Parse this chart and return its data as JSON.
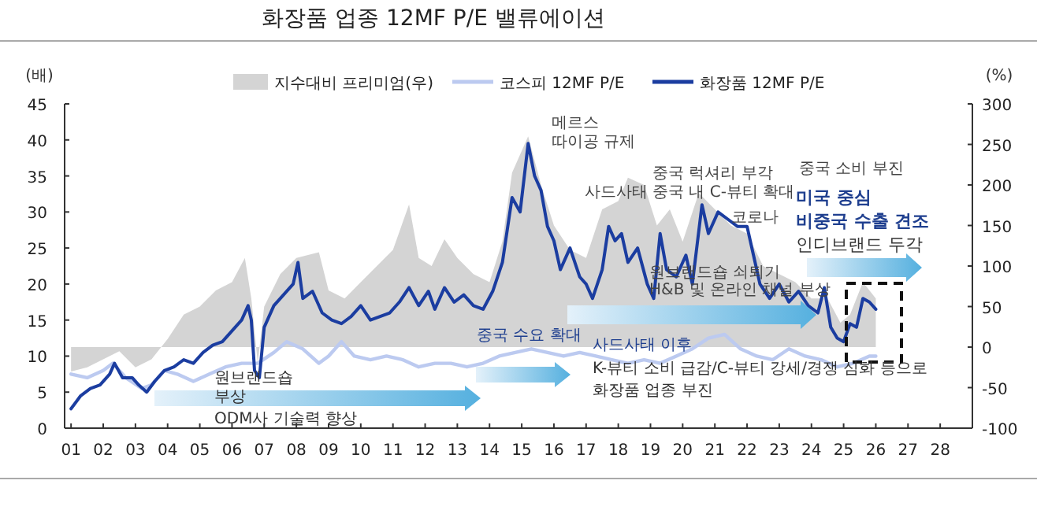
{
  "chart_data": {
    "type": "line",
    "title": "화장품 업종 12MF P/E 밸류에이션",
    "ylabel": "(배)",
    "y2label": "(%)",
    "legend": "top",
    "xlim": [
      2000.8,
      2029
    ],
    "xticks": [
      {
        "value": 2001,
        "label": "01"
      },
      {
        "value": 2002,
        "label": "02"
      },
      {
        "value": 2003,
        "label": "03"
      },
      {
        "value": 2004,
        "label": "04"
      },
      {
        "value": 2005,
        "label": "05"
      },
      {
        "value": 2006,
        "label": "06"
      },
      {
        "value": 2007,
        "label": "07"
      },
      {
        "value": 2008,
        "label": "08"
      },
      {
        "value": 2009,
        "label": "09"
      },
      {
        "value": 2010,
        "label": "10"
      },
      {
        "value": 2011,
        "label": "11"
      },
      {
        "value": 2012,
        "label": "12"
      },
      {
        "value": 2013,
        "label": "13"
      },
      {
        "value": 2014,
        "label": "14"
      },
      {
        "value": 2015,
        "label": "15"
      },
      {
        "value": 2016,
        "label": "16"
      },
      {
        "value": 2017,
        "label": "17"
      },
      {
        "value": 2018,
        "label": "18"
      },
      {
        "value": 2019,
        "label": "19"
      },
      {
        "value": 2020,
        "label": "20"
      },
      {
        "value": 2021,
        "label": "21"
      },
      {
        "value": 2022,
        "label": "22"
      },
      {
        "value": 2023,
        "label": "23"
      },
      {
        "value": 2024,
        "label": "24"
      },
      {
        "value": 2025,
        "label": "25"
      },
      {
        "value": 2026,
        "label": "26"
      },
      {
        "value": 2027,
        "label": "27"
      },
      {
        "value": 2028,
        "label": "28"
      }
    ],
    "ylim": [
      0,
      45
    ],
    "yticks": [
      0,
      5,
      10,
      15,
      20,
      25,
      30,
      35,
      40,
      45
    ],
    "y2lim": [
      -100,
      300
    ],
    "y2ticks": [
      -100,
      -50,
      0,
      50,
      100,
      150,
      200,
      250,
      300
    ],
    "series": [
      {
        "name": "지수대비 프리미엄(우)",
        "type": "area",
        "axis": "y2",
        "color": "#d4d4d4",
        "x": [
          2001.0,
          2001.5,
          2002.0,
          2002.5,
          2003.0,
          2003.5,
          2004.0,
          2004.5,
          2005.0,
          2005.5,
          2006.0,
          2006.4,
          2006.6,
          2006.8,
          2007.0,
          2007.5,
          2008.0,
          2008.7,
          2009.0,
          2009.5,
          2010.0,
          2010.5,
          2011.0,
          2011.5,
          2011.8,
          2012.2,
          2012.6,
          2013.0,
          2013.5,
          2014.0,
          2014.4,
          2014.7,
          2015.2,
          2015.6,
          2016.0,
          2016.5,
          2017.0,
          2017.5,
          2018.0,
          2018.3,
          2018.8,
          2019.2,
          2019.6,
          2020.0,
          2020.5,
          2021.0,
          2021.5,
          2022.0,
          2022.5,
          2023.0,
          2023.5,
          2024.0,
          2024.5,
          2024.9,
          2025.2,
          2025.6,
          2026.0
        ],
        "values": [
          -30,
          -25,
          -15,
          -5,
          -25,
          -15,
          10,
          40,
          50,
          70,
          80,
          110,
          60,
          -20,
          50,
          90,
          110,
          117,
          70,
          60,
          80,
          100,
          120,
          176,
          110,
          100,
          133,
          110,
          90,
          80,
          130,
          215,
          260,
          200,
          150,
          120,
          110,
          170,
          180,
          209,
          200,
          150,
          170,
          130,
          190,
          170,
          150,
          140,
          100,
          90,
          80,
          60,
          60,
          30,
          40,
          80,
          60
        ]
      },
      {
        "name": "코스피 12MF P/E",
        "color": "#bccaf0",
        "x": [
          2001.0,
          2001.5,
          2002.0,
          2002.3,
          2002.7,
          2003.2,
          2003.5,
          2003.9,
          2004.3,
          2004.8,
          2005.3,
          2005.8,
          2006.3,
          2006.8,
          2007.3,
          2007.7,
          2008.2,
          2008.7,
          2009.0,
          2009.4,
          2009.8,
          2010.3,
          2010.8,
          2011.3,
          2011.8,
          2012.3,
          2012.8,
          2013.3,
          2013.8,
          2014.3,
          2014.8,
          2015.3,
          2015.8,
          2016.3,
          2016.8,
          2017.3,
          2017.8,
          2018.3,
          2018.8,
          2019.3,
          2019.8,
          2020.3,
          2020.8,
          2021.3,
          2021.8,
          2022.3,
          2022.8,
          2023.3,
          2023.8,
          2024.3,
          2024.8,
          2025.3,
          2025.8,
          2026.0
        ],
        "values": [
          7.5,
          7,
          8,
          9,
          7,
          5.5,
          6,
          8,
          7.5,
          6.5,
          7.5,
          8.5,
          9,
          9,
          10.5,
          12,
          11,
          9,
          10,
          12,
          10,
          9.5,
          10,
          9.5,
          8.5,
          9,
          9,
          8.5,
          9,
          10,
          10.5,
          11,
          10.5,
          10,
          10.5,
          10,
          9.5,
          9,
          9.5,
          9,
          10,
          11,
          12.5,
          13,
          11,
          10,
          9.5,
          11,
          10,
          9.5,
          8.5,
          9,
          10,
          10
        ]
      },
      {
        "name": "화장품 12MF P/E",
        "color": "#1b3da0",
        "x": [
          2001.0,
          2001.3,
          2001.6,
          2001.9,
          2002.2,
          2002.35,
          2002.6,
          2002.9,
          2003.1,
          2003.35,
          2003.6,
          2003.9,
          2004.2,
          2004.5,
          2004.8,
          2005.1,
          2005.4,
          2005.7,
          2006.0,
          2006.3,
          2006.5,
          2006.6,
          2006.7,
          2006.85,
          2007.0,
          2007.3,
          2007.6,
          2007.9,
          2008.05,
          2008.2,
          2008.5,
          2008.8,
          2009.1,
          2009.4,
          2009.7,
          2010.0,
          2010.3,
          2010.6,
          2010.9,
          2011.2,
          2011.5,
          2011.8,
          2012.1,
          2012.3,
          2012.6,
          2012.9,
          2013.2,
          2013.5,
          2013.8,
          2014.1,
          2014.4,
          2014.7,
          2014.95,
          2015.2,
          2015.4,
          2015.6,
          2015.8,
          2016.0,
          2016.2,
          2016.5,
          2016.8,
          2017.0,
          2017.2,
          2017.5,
          2017.7,
          2017.9,
          2018.1,
          2018.3,
          2018.6,
          2018.9,
          2019.1,
          2019.3,
          2019.5,
          2019.8,
          2020.1,
          2020.3,
          2020.6,
          2020.8,
          2021.1,
          2021.4,
          2021.7,
          2022.0,
          2022.2,
          2022.4,
          2022.7,
          2023.0,
          2023.3,
          2023.6,
          2023.9,
          2024.2,
          2024.4,
          2024.6,
          2024.8,
          2025.0,
          2025.2,
          2025.4,
          2025.6,
          2025.8,
          2026.0
        ],
        "values": [
          2.7,
          4.5,
          5.5,
          6,
          7.5,
          9,
          7,
          7,
          6,
          5,
          6.5,
          8,
          8.5,
          9.5,
          9,
          10.5,
          11.5,
          12,
          13.5,
          15,
          17,
          15,
          8,
          7,
          14,
          17,
          18.5,
          20,
          23,
          18,
          19,
          16,
          15,
          14.5,
          15.5,
          17,
          15,
          15.5,
          16,
          17.5,
          19.5,
          17,
          19,
          16.5,
          19.5,
          17.5,
          18.5,
          17,
          16.5,
          19,
          23,
          32,
          30,
          39.5,
          35,
          33,
          28,
          26,
          22,
          25,
          21,
          20,
          18,
          22,
          28,
          26,
          27,
          23,
          25,
          20,
          18,
          27,
          22,
          21,
          24,
          20,
          31,
          27,
          30,
          29,
          28,
          28,
          24,
          20,
          18,
          20,
          17.5,
          19,
          17,
          16,
          19.5,
          14,
          12.5,
          12,
          14.5,
          14,
          18,
          17.5,
          16.5
        ]
      }
    ],
    "annotations": [
      "메르스\n따이공 규제",
      "사드사태",
      "중국 럭셔리 부각\n중국 내 C-뷰티 확대",
      "코로나",
      "중국 소비 부진",
      "미국 중심\n비중국 수출 견조",
      "인디브랜드 두각",
      "원브랜드숍 쇠퇴기\nH&B 및 온라인 채널 부상",
      {
        "text": "중국 수요 확대",
        "x": 2013.6,
        "y": 12.2
      },
      "사드사태 이후",
      "K-뷰티 소비 급감/C-뷰티 강세/경쟁 심화 등으로\n화장품 업종 부진",
      "원브랜드숍\n부상",
      "ODM사 기술력 향상"
    ]
  }
}
